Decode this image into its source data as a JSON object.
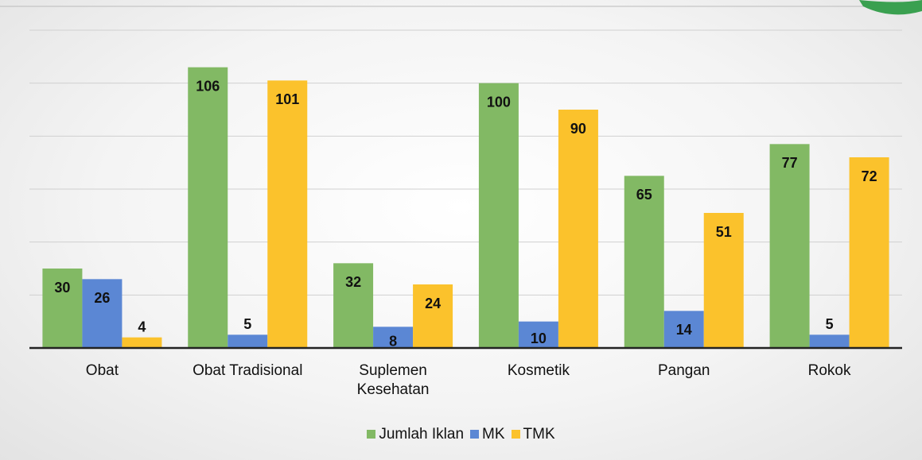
{
  "chart_data": {
    "type": "bar",
    "categories": [
      "Obat",
      "Obat Tradisional",
      "Suplemen Kesehatan",
      "Kosmetik",
      "Pangan",
      "Rokok"
    ],
    "series": [
      {
        "name": "Jumlah Iklan",
        "color": "#82b964",
        "values": [
          30,
          106,
          32,
          100,
          65,
          77
        ]
      },
      {
        "name": "MK",
        "color": "#5b87d4",
        "values": [
          26,
          5,
          8,
          10,
          14,
          5
        ]
      },
      {
        "name": "TMK",
        "color": "#fbc22c",
        "values": [
          4,
          101,
          24,
          90,
          51,
          72
        ]
      }
    ],
    "ylim": [
      0,
      120
    ],
    "yticks": [
      0,
      20,
      40,
      60,
      80,
      100,
      120
    ],
    "grid": true,
    "legend": "bottom"
  }
}
